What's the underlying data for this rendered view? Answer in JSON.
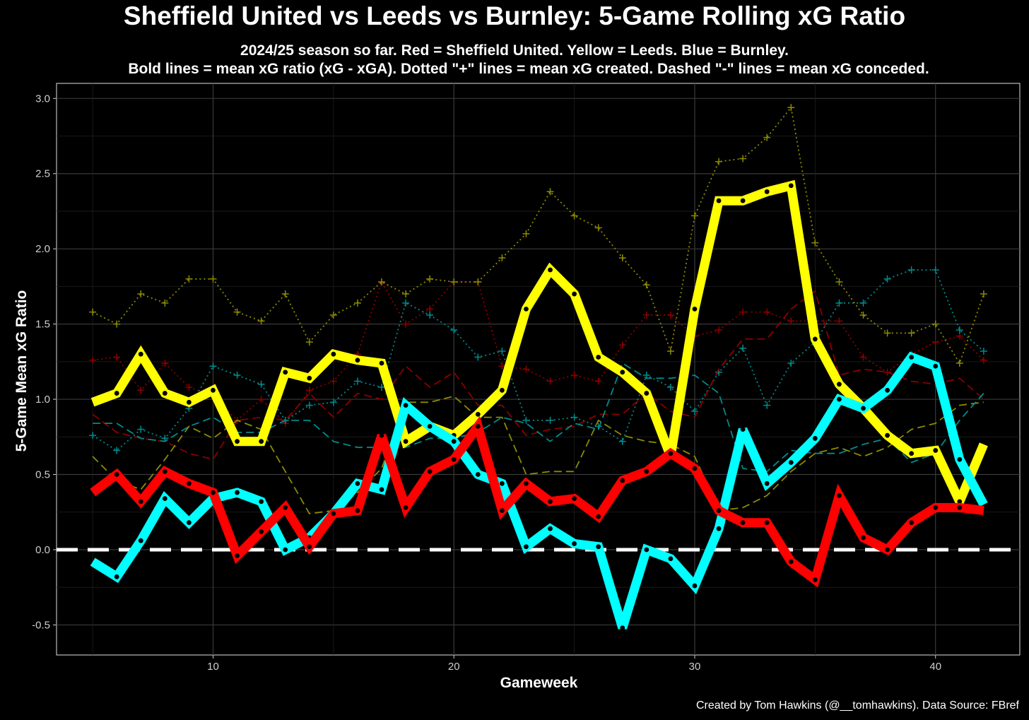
{
  "chart_data": {
    "type": "line",
    "title": "Sheffield United vs Leeds vs Burnley: 5-Game Rolling xG Ratio",
    "subtitle_lines": [
      "2024/25 season so far. Red = Sheffield United. Yellow = Leeds. Blue = Burnley.",
      "Bold lines = mean xG ratio (xG - xGA). Dotted \"+\" lines = mean xG created. Dashed \"-\" lines = mean xG conceded."
    ],
    "xlabel": "Gameweek",
    "ylabel": "5-Game Mean xG Ratio",
    "caption": "Created by Tom Hawkins (@__tomhawkins). Data Source: FBref",
    "xlim": [
      3.5,
      43.5
    ],
    "ylim": [
      -0.7,
      3.1
    ],
    "x_ticks": [
      10,
      20,
      30,
      40
    ],
    "y_ticks": [
      -0.5,
      0.0,
      0.5,
      1.0,
      1.5,
      2.0,
      2.5,
      3.0
    ],
    "y_tick_labels": [
      "-0.5",
      "0.0",
      "0.5",
      "1.0",
      "1.5",
      "2.0",
      "2.5",
      "3.0"
    ],
    "reference_line": 0,
    "x": [
      5,
      6,
      7,
      8,
      9,
      10,
      11,
      12,
      13,
      14,
      15,
      16,
      17,
      18,
      19,
      20,
      21,
      22,
      23,
      24,
      25,
      26,
      27,
      28,
      29,
      30,
      31,
      32,
      33,
      34,
      35,
      36,
      37,
      38,
      39,
      40,
      41,
      42
    ],
    "series": [
      {
        "name": "Sheffield United xG ratio",
        "team": "Sheffield United",
        "kind": "ratio",
        "color": "#ff0000",
        "values": [
          0.38,
          0.5,
          0.32,
          0.52,
          0.44,
          0.38,
          -0.04,
          0.12,
          0.28,
          0.02,
          0.24,
          0.26,
          0.76,
          0.28,
          0.52,
          0.6,
          0.82,
          0.26,
          0.44,
          0.32,
          0.34,
          0.22,
          0.46,
          0.52,
          0.64,
          0.54,
          0.26,
          0.18,
          0.18,
          -0.08,
          -0.2,
          0.36,
          0.08,
          0.0,
          0.18,
          0.28,
          0.28,
          0.26
        ]
      },
      {
        "name": "Leeds xG ratio",
        "team": "Leeds",
        "kind": "ratio",
        "color": "#ffff00",
        "values": [
          0.98,
          1.04,
          1.3,
          1.04,
          0.98,
          1.06,
          0.72,
          0.72,
          1.18,
          1.14,
          1.3,
          1.26,
          1.24,
          0.72,
          0.82,
          0.76,
          0.9,
          1.06,
          1.6,
          1.86,
          1.7,
          1.28,
          1.18,
          1.04,
          0.62,
          1.6,
          2.32,
          2.32,
          2.38,
          2.42,
          1.4,
          1.1,
          0.94,
          0.76,
          0.64,
          0.66,
          0.32,
          0.7
        ]
      },
      {
        "name": "Burnley xG ratio",
        "team": "Burnley",
        "kind": "ratio",
        "color": "#00ffff",
        "values": [
          -0.08,
          -0.18,
          0.06,
          0.34,
          0.18,
          0.34,
          0.38,
          0.32,
          0.0,
          0.08,
          0.24,
          0.44,
          0.4,
          0.96,
          0.82,
          0.72,
          0.5,
          0.44,
          0.02,
          0.14,
          0.04,
          0.02,
          -0.52,
          0.0,
          -0.06,
          -0.24,
          0.14,
          0.8,
          0.44,
          0.58,
          0.74,
          1.0,
          0.94,
          1.06,
          1.28,
          1.22,
          0.6,
          0.3
        ]
      },
      {
        "name": "Sheffield United xG created",
        "team": "Sheffield United",
        "kind": "created",
        "color": "#8b0000",
        "values": [
          1.26,
          1.28,
          1.06,
          1.24,
          1.08,
          1.02,
          0.86,
          1.0,
          0.84,
          1.06,
          1.12,
          1.3,
          1.78,
          1.5,
          1.6,
          1.78,
          1.78,
          1.22,
          1.2,
          1.12,
          1.16,
          1.12,
          1.36,
          1.56,
          1.56,
          1.42,
          1.46,
          1.58,
          1.58,
          1.52,
          1.52,
          1.52,
          1.28,
          1.18,
          1.3,
          1.38,
          1.42,
          1.26
        ]
      },
      {
        "name": "Leeds xG created",
        "team": "Leeds",
        "kind": "created",
        "color": "#8b8b00",
        "values": [
          1.58,
          1.5,
          1.7,
          1.64,
          1.8,
          1.8,
          1.58,
          1.52,
          1.7,
          1.38,
          1.56,
          1.64,
          1.78,
          1.7,
          1.8,
          1.78,
          1.78,
          1.94,
          2.1,
          2.38,
          2.22,
          2.14,
          1.94,
          1.76,
          1.32,
          2.22,
          2.58,
          2.6,
          2.74,
          2.94,
          2.04,
          1.78,
          1.56,
          1.44,
          1.44,
          1.5,
          1.24,
          1.7
        ]
      },
      {
        "name": "Burnley xG created",
        "team": "Burnley",
        "kind": "created",
        "color": "#008b8b",
        "values": [
          0.76,
          0.66,
          0.8,
          0.74,
          0.94,
          1.22,
          1.16,
          1.1,
          0.86,
          0.96,
          0.98,
          1.12,
          1.08,
          1.64,
          1.56,
          1.46,
          1.28,
          1.32,
          0.86,
          0.86,
          0.88,
          0.82,
          0.72,
          1.16,
          1.08,
          0.92,
          1.18,
          1.34,
          0.96,
          1.24,
          1.38,
          1.64,
          1.64,
          1.8,
          1.86,
          1.86,
          1.46,
          1.32
        ]
      },
      {
        "name": "Sheffield United xG conceded",
        "team": "Sheffield United",
        "kind": "conceded",
        "color": "#8b0000",
        "values": [
          0.9,
          0.78,
          0.74,
          0.72,
          0.64,
          0.6,
          0.86,
          0.88,
          0.86,
          1.04,
          0.88,
          1.04,
          1.0,
          1.22,
          1.08,
          1.18,
          0.96,
          0.96,
          0.76,
          0.8,
          0.82,
          0.9,
          0.9,
          1.04,
          0.92,
          0.88,
          1.2,
          1.4,
          1.4,
          1.6,
          1.72,
          1.16,
          1.2,
          1.18,
          1.12,
          1.1,
          1.14,
          1.0
        ]
      },
      {
        "name": "Leeds xG conceded",
        "team": "Leeds",
        "kind": "conceded",
        "color": "#8b8b00",
        "values": [
          0.62,
          0.46,
          0.4,
          0.6,
          0.82,
          0.74,
          0.86,
          0.8,
          0.52,
          0.24,
          0.26,
          0.38,
          0.54,
          0.98,
          0.98,
          1.02,
          0.88,
          0.88,
          0.5,
          0.52,
          0.52,
          0.86,
          0.76,
          0.72,
          0.7,
          0.62,
          0.26,
          0.28,
          0.36,
          0.52,
          0.64,
          0.68,
          0.62,
          0.68,
          0.8,
          0.84,
          0.96,
          0.98
        ]
      },
      {
        "name": "Burnley xG conceded",
        "team": "Burnley",
        "kind": "conceded",
        "color": "#008b8b",
        "values": [
          0.84,
          0.84,
          0.74,
          0.72,
          0.82,
          0.88,
          0.78,
          0.78,
          0.86,
          0.86,
          0.72,
          0.68,
          0.68,
          0.68,
          0.74,
          0.74,
          0.78,
          0.88,
          0.84,
          0.72,
          0.84,
          0.8,
          1.24,
          1.14,
          1.14,
          1.16,
          1.04,
          0.54,
          0.52,
          0.66,
          0.64,
          0.64,
          0.7,
          0.74,
          0.58,
          0.64,
          0.86,
          1.04
        ]
      }
    ],
    "legend_position": "none",
    "grid": true
  }
}
